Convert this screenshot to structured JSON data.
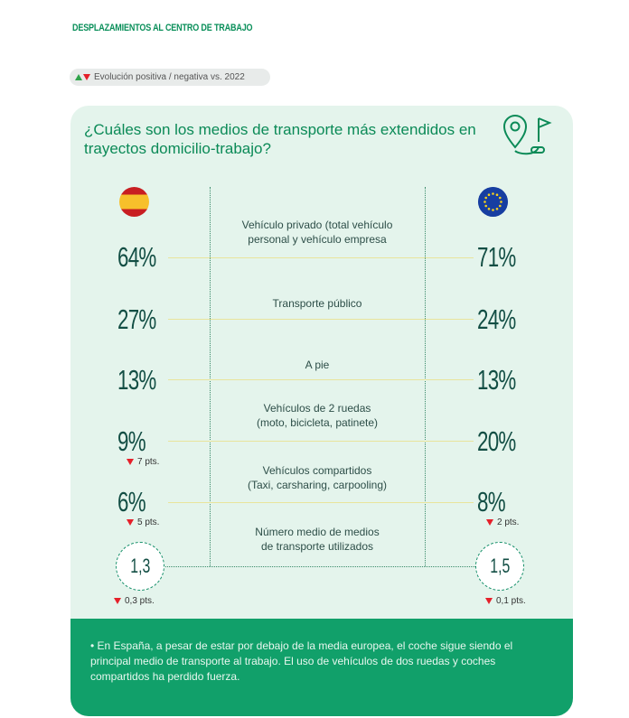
{
  "section_title": "DESPLAZAMIENTOS AL CENTRO DE TRABAJO",
  "legend": "Evolución positiva / negativa vs. 2022",
  "card_title": "¿Cuáles son los medios de transporte más extendidos en trayectos domicilio-trabajo?",
  "icons": {
    "map": "map-pin-flag-icon",
    "spain": "spain-flag-icon",
    "eu": "eu-flag-icon"
  },
  "colors": {
    "accent": "#0b8a57",
    "card_bg": "#e4f4ec",
    "bottom_bg": "#11a06a",
    "up": "#2fa34a",
    "down": "#e5202a"
  },
  "rows": [
    {
      "label_1": "Vehículo privado (total vehículo",
      "label_2": "personal y vehículo empresa",
      "spain": "64%",
      "eu": "71%"
    },
    {
      "label_1": "Transporte público",
      "spain": "27%",
      "eu": "24%"
    },
    {
      "label_1": "A pie",
      "spain": "13%",
      "eu": "13%"
    },
    {
      "label_1": "Vehículos de 2 ruedas",
      "label_2": "(moto, bicicleta, patinete)",
      "spain": "9%",
      "spain_delta": "7 pts.",
      "eu": "20%"
    },
    {
      "label_1": "Vehículos compartidos",
      "label_2": "(Taxi, carsharing, carpooling)",
      "spain": "6%",
      "spain_delta": "5 pts.",
      "eu": "8%",
      "eu_delta": "2 pts."
    }
  ],
  "average": {
    "label_1": "Número medio de medios",
    "label_2": "de transporte utilizados",
    "spain": "1,3",
    "spain_delta": "0,3 pts.",
    "eu": "1,5",
    "eu_delta": "0,1 pts."
  },
  "bottom_note": "• En España, a pesar de estar por debajo de la media europea, el coche sigue siendo el principal medio de transporte al trabajo. El uso de vehículos de dos ruedas y coches compartidos ha perdido fuerza."
}
